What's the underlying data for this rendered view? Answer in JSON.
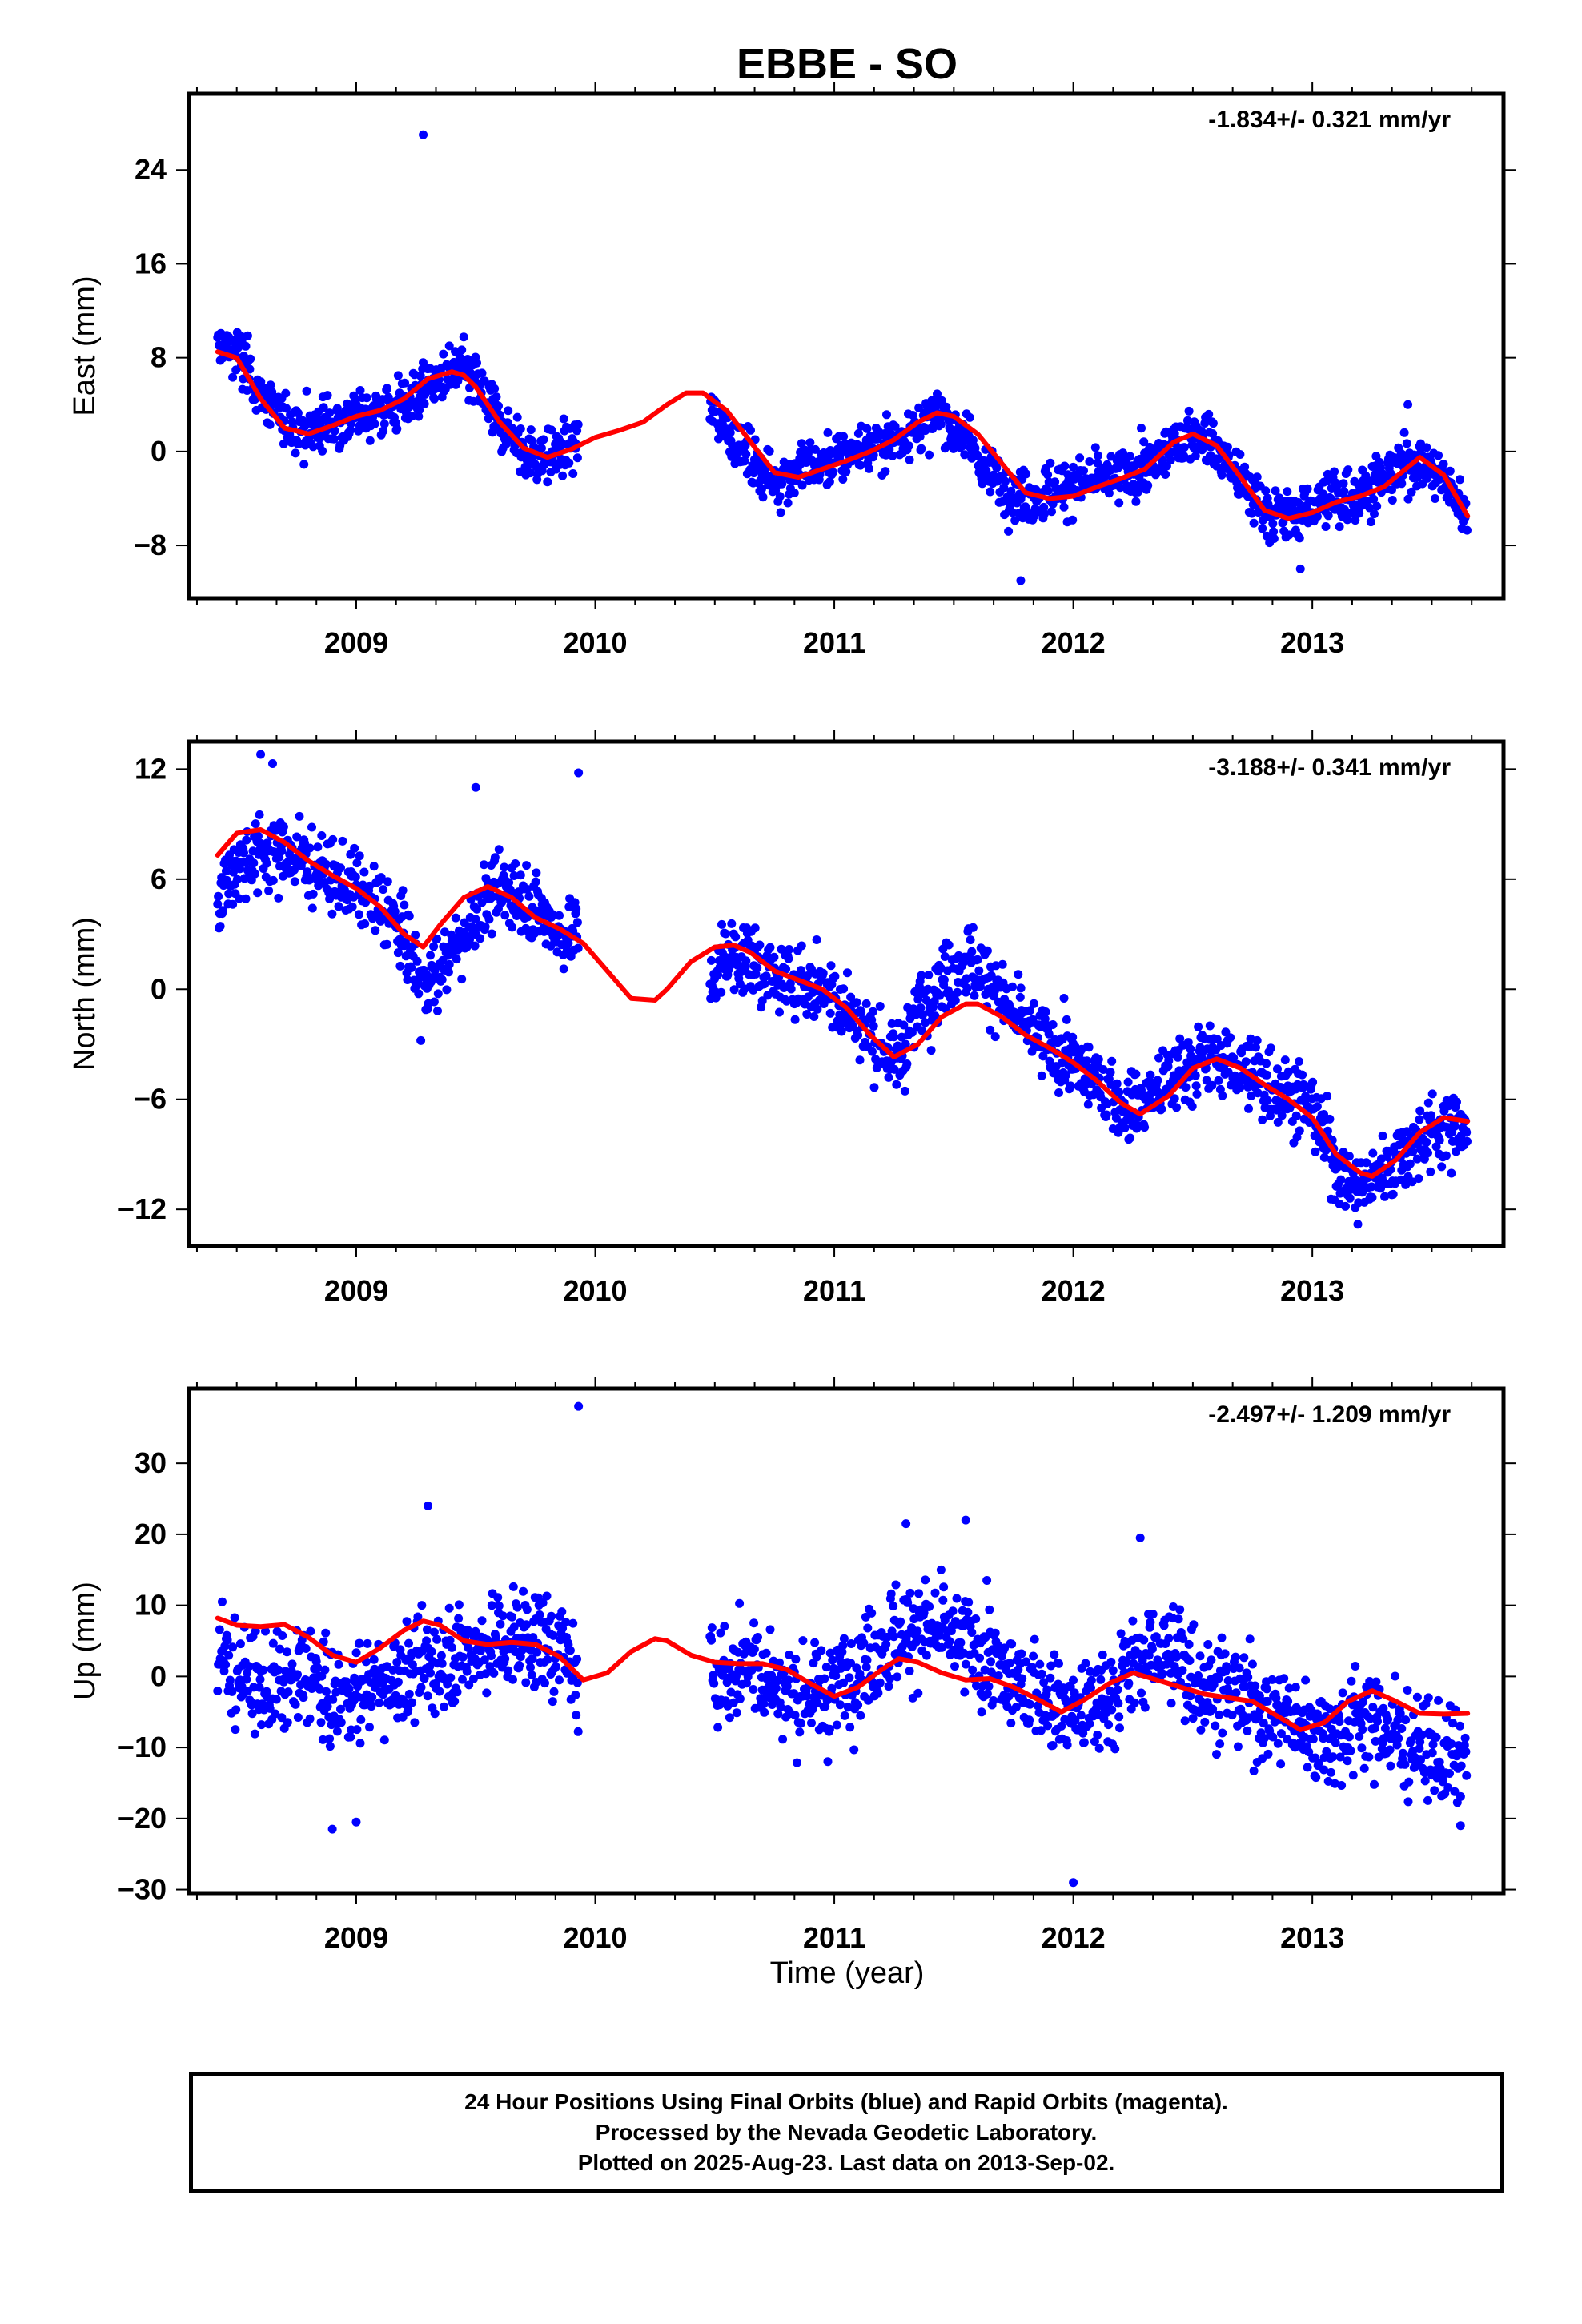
{
  "title": "EBBE - SO",
  "chart_data": [
    {
      "type": "scatter",
      "ylabel": "East (mm)",
      "rate_label": "-1.834+/- 0.321 mm/yr",
      "ylim": [
        -12.5,
        30.5
      ],
      "xlim": [
        2008.3,
        2013.8
      ],
      "yticks": [
        -8,
        0,
        8,
        16,
        24
      ],
      "ytick_labels": [
        "−8",
        "0",
        "8",
        "16",
        "24"
      ],
      "xticks": [
        2009,
        2010,
        2011,
        2012,
        2013
      ],
      "xtick_labels": [
        "2009",
        "2010",
        "2011",
        "2012",
        "2013"
      ],
      "point_color": "#0000ff",
      "fit_color": "#ff0000",
      "series": [
        {
          "x": [
            2008.42,
            2008.5,
            2008.6,
            2008.7,
            2008.8,
            2008.9,
            2009.0,
            2009.1,
            2009.2,
            2009.3,
            2009.4,
            2009.5,
            2009.6,
            2009.7,
            2009.8,
            2009.9,
            2009.93,
            2010.48,
            2010.55,
            2010.65,
            2010.75,
            2010.85,
            2010.95,
            2011.1,
            2011.3,
            2011.45,
            2011.55,
            2011.65,
            2011.75,
            2011.85,
            2011.95,
            2012.1,
            2012.3,
            2012.45,
            2012.55,
            2012.65,
            2012.75,
            2012.85,
            2012.95,
            2013.1,
            2013.2,
            2013.45,
            2013.55,
            2013.65
          ],
          "y": [
            9,
            8.5,
            5,
            2.5,
            2,
            2.5,
            3,
            3.5,
            4,
            5.5,
            7,
            6,
            2.5,
            0,
            -0.5,
            0.5,
            1,
            3.5,
            2,
            -1,
            -2.5,
            -1.5,
            -1,
            0,
            1.5,
            3,
            1,
            -2,
            -3.5,
            -4,
            -3,
            -2.5,
            -1.5,
            1,
            1.5,
            -1,
            -4,
            -5.5,
            -5,
            -4,
            -3.5,
            -0.5,
            -2.5,
            -5.5
          ]
        },
        {
          "x": [
            2009.28,
            2011.78,
            2012.95,
            2013.4
          ],
          "y": [
            27,
            -11,
            -10,
            4
          ]
        }
      ],
      "fit": {
        "x": [
          2008.42,
          2008.5,
          2008.6,
          2008.7,
          2008.8,
          2008.9,
          2009.0,
          2009.1,
          2009.2,
          2009.3,
          2009.4,
          2009.45,
          2009.5,
          2009.6,
          2009.7,
          2009.8,
          2009.9,
          2010.0,
          2010.1,
          2010.2,
          2010.3,
          2010.38,
          2010.45,
          2010.55,
          2010.65,
          2010.75,
          2010.85,
          2010.95,
          2011.05,
          2011.15,
          2011.25,
          2011.35,
          2011.43,
          2011.5,
          2011.6,
          2011.7,
          2011.8,
          2011.9,
          2012.0,
          2012.1,
          2012.2,
          2012.3,
          2012.42,
          2012.5,
          2012.6,
          2012.7,
          2012.8,
          2012.9,
          2013.0,
          2013.1,
          2013.2,
          2013.3,
          2013.45,
          2013.55,
          2013.65
        ],
        "y": [
          8.5,
          8,
          4.5,
          2,
          1.5,
          2.2,
          3,
          3.5,
          4.5,
          6.2,
          6.8,
          6.5,
          5.5,
          2.5,
          0.3,
          -0.5,
          0.2,
          1.2,
          1.8,
          2.5,
          4,
          5,
          5,
          3.5,
          0.8,
          -1.8,
          -2.2,
          -1.5,
          -0.8,
          0,
          1,
          2.5,
          3.3,
          3,
          1.5,
          -1,
          -3.5,
          -4,
          -3.8,
          -3,
          -2.3,
          -1.5,
          0.8,
          1.5,
          0.5,
          -2.2,
          -5,
          -5.7,
          -5.2,
          -4.3,
          -3.8,
          -3,
          -0.5,
          -2,
          -5.5
        ]
      }
    },
    {
      "type": "scatter",
      "ylabel": "North (mm)",
      "rate_label": "-3.188+/- 0.341 mm/yr",
      "ylim": [
        -14,
        13.5
      ],
      "xlim": [
        2008.3,
        2013.8
      ],
      "yticks": [
        -12,
        -6,
        0,
        6,
        12
      ],
      "ytick_labels": [
        "−12",
        "−6",
        "0",
        "6",
        "12"
      ],
      "xticks": [
        2009,
        2010,
        2011,
        2012,
        2013
      ],
      "xtick_labels": [
        "2009",
        "2010",
        "2011",
        "2012",
        "2013"
      ],
      "point_color": "#0000ff",
      "fit_color": "#ff0000",
      "series": [
        {
          "x": [
            2008.42,
            2008.5,
            2008.6,
            2008.7,
            2008.8,
            2008.9,
            2009.0,
            2009.1,
            2009.2,
            2009.27,
            2009.35,
            2009.45,
            2009.55,
            2009.65,
            2009.75,
            2009.85,
            2009.93,
            2010.48,
            2010.55,
            2010.65,
            2010.75,
            2010.85,
            2010.95,
            2011.05,
            2011.15,
            2011.25,
            2011.35,
            2011.45,
            2011.55,
            2011.65,
            2011.75,
            2011.85,
            2011.95,
            2012.1,
            2012.2,
            2012.3,
            2012.4,
            2012.5,
            2012.6,
            2012.7,
            2012.8,
            2012.9,
            2013.0,
            2013.1,
            2013.2,
            2013.45,
            2013.55,
            2013.65
          ],
          "y": [
            5,
            7,
            7.5,
            7.5,
            7,
            6,
            5.5,
            4.5,
            3,
            0.5,
            1,
            3,
            5,
            5.5,
            4.5,
            3,
            3,
            0.5,
            2,
            1.5,
            0.5,
            0.5,
            0,
            -1,
            -2.5,
            -4,
            -1,
            0.5,
            1.5,
            0.5,
            -1.5,
            -2.5,
            -3.5,
            -5,
            -6.5,
            -6,
            -5,
            -4,
            -3.5,
            -4.5,
            -5,
            -5.5,
            -6.5,
            -9.5,
            -11,
            -8,
            -7.5,
            -7.5
          ]
        },
        {
          "x": [
            2008.6,
            2008.65,
            2009.5,
            2009.93,
            2009.27
          ],
          "y": [
            12.8,
            12.3,
            11,
            11.8,
            -2.8
          ]
        }
      ],
      "fit": {
        "x": [
          2008.42,
          2008.5,
          2008.6,
          2008.7,
          2008.8,
          2008.9,
          2009.0,
          2009.1,
          2009.2,
          2009.28,
          2009.35,
          2009.45,
          2009.55,
          2009.65,
          2009.75,
          2009.85,
          2009.95,
          2010.05,
          2010.15,
          2010.25,
          2010.3,
          2010.4,
          2010.5,
          2010.58,
          2010.65,
          2010.75,
          2010.85,
          2010.95,
          2011.05,
          2011.15,
          2011.25,
          2011.35,
          2011.45,
          2011.55,
          2011.6,
          2011.7,
          2011.8,
          2011.9,
          2012.0,
          2012.1,
          2012.2,
          2012.28,
          2012.4,
          2012.5,
          2012.6,
          2012.7,
          2012.8,
          2012.9,
          2013.0,
          2013.1,
          2013.2,
          2013.25,
          2013.35,
          2013.45,
          2013.55,
          2013.65
        ],
        "y": [
          7.3,
          8.5,
          8.7,
          8,
          7,
          6.2,
          5.5,
          4.5,
          3,
          2.3,
          3.5,
          5,
          5.6,
          5,
          3.9,
          3.3,
          2.5,
          1,
          -0.5,
          -0.6,
          0,
          1.5,
          2.3,
          2.4,
          2,
          1,
          0.5,
          0,
          -1,
          -2.5,
          -3.7,
          -3,
          -1.5,
          -0.8,
          -0.8,
          -1.5,
          -2.5,
          -3.2,
          -4,
          -5,
          -6.2,
          -6.8,
          -5.8,
          -4.3,
          -3.8,
          -4.3,
          -5.2,
          -6,
          -7,
          -9,
          -10,
          -10.2,
          -9.3,
          -7.8,
          -7,
          -7.2
        ]
      }
    },
    {
      "type": "scatter",
      "ylabel": "Up (mm)",
      "rate_label": "-2.497+/- 1.209 mm/yr",
      "ylim": [
        -30.5,
        40.5
      ],
      "xlim": [
        2008.3,
        2013.8
      ],
      "yticks": [
        -30,
        -20,
        -10,
        0,
        10,
        20,
        30
      ],
      "ytick_labels": [
        "−30",
        "−20",
        "−10",
        "0",
        "10",
        "20",
        "30"
      ],
      "xticks": [
        2009,
        2010,
        2011,
        2012,
        2013
      ],
      "xtick_labels": [
        "2009",
        "2010",
        "2011",
        "2012",
        "2013"
      ],
      "point_color": "#0000ff",
      "fit_color": "#ff0000",
      "series": [
        {
          "x": [
            2008.42,
            2008.5,
            2008.6,
            2008.7,
            2008.8,
            2008.9,
            2009.0,
            2009.1,
            2009.2,
            2009.3,
            2009.4,
            2009.5,
            2009.6,
            2009.7,
            2009.8,
            2009.9,
            2009.93,
            2010.48,
            2010.55,
            2010.65,
            2010.75,
            2010.85,
            2010.95,
            2011.05,
            2011.15,
            2011.25,
            2011.35,
            2011.45,
            2011.55,
            2011.65,
            2011.75,
            2011.85,
            2011.95,
            2012.05,
            2012.15,
            2012.25,
            2012.35,
            2012.45,
            2012.55,
            2012.65,
            2012.75,
            2012.85,
            2012.95,
            2013.05,
            2013.15,
            2013.2,
            2013.45,
            2013.55,
            2013.65
          ],
          "y": [
            3,
            1,
            -2,
            -1,
            0,
            -3,
            -2,
            -1,
            0,
            2,
            3,
            4,
            5,
            6,
            4,
            3,
            -4,
            1,
            0,
            2,
            -1,
            -3,
            -2,
            0,
            3,
            5,
            7,
            6,
            5,
            2,
            -1,
            -2,
            -4,
            -5,
            -3,
            2,
            4,
            2,
            -1,
            -2,
            -4,
            -5,
            -7,
            -8,
            -7,
            -5,
            -10,
            -12,
            -11
          ]
        },
        {
          "x": [
            2009.3,
            2009.93,
            2008.9,
            2009.0,
            2012.0,
            2011.55,
            2011.3,
            2012.28,
            2013.62
          ],
          "y": [
            24,
            38,
            -21.5,
            -20.5,
            -29,
            22,
            21.5,
            19.5,
            -21
          ]
        }
      ],
      "fit": {
        "x": [
          2008.42,
          2008.5,
          2008.6,
          2008.7,
          2008.8,
          2008.9,
          2009.0,
          2009.1,
          2009.2,
          2009.28,
          2009.35,
          2009.45,
          2009.55,
          2009.65,
          2009.75,
          2009.85,
          2009.95,
          2010.05,
          2010.15,
          2010.25,
          2010.3,
          2010.4,
          2010.5,
          2010.6,
          2010.7,
          2010.8,
          2010.9,
          2011.0,
          2011.1,
          2011.2,
          2011.27,
          2011.35,
          2011.45,
          2011.55,
          2011.65,
          2011.75,
          2011.85,
          2011.95,
          2012.05,
          2012.15,
          2012.25,
          2012.35,
          2012.45,
          2012.55,
          2012.65,
          2012.75,
          2012.85,
          2012.95,
          2013.05,
          2013.15,
          2013.25,
          2013.35,
          2013.45,
          2013.55,
          2013.65
        ],
        "y": [
          8.2,
          7.2,
          7,
          7.3,
          5.5,
          3,
          2,
          4,
          6.5,
          7.8,
          7.2,
          5,
          4.5,
          4.8,
          4.5,
          2.8,
          -0.5,
          0.5,
          3.5,
          5.3,
          5,
          3,
          2,
          1.8,
          1.8,
          1,
          -1,
          -2.8,
          -1.5,
          1,
          2.5,
          2,
          0.5,
          -0.5,
          -0.3,
          -1.5,
          -3.2,
          -5,
          -3.2,
          -1,
          0.5,
          -0.5,
          -1.5,
          -2.5,
          -3,
          -3.5,
          -5.5,
          -7.5,
          -6.5,
          -3.5,
          -2,
          -3.5,
          -5.2,
          -5.3,
          -5.2
        ]
      }
    }
  ],
  "footer": {
    "line1": "24 Hour Positions Using Final Orbits (blue) and Rapid Orbits (magenta).",
    "line2": "Processed by the Nevada Geodetic Laboratory.",
    "line3": "Plotted on 2025-Aug-23. Last data on 2013-Sep-02."
  },
  "xlabel": "Time (year)"
}
